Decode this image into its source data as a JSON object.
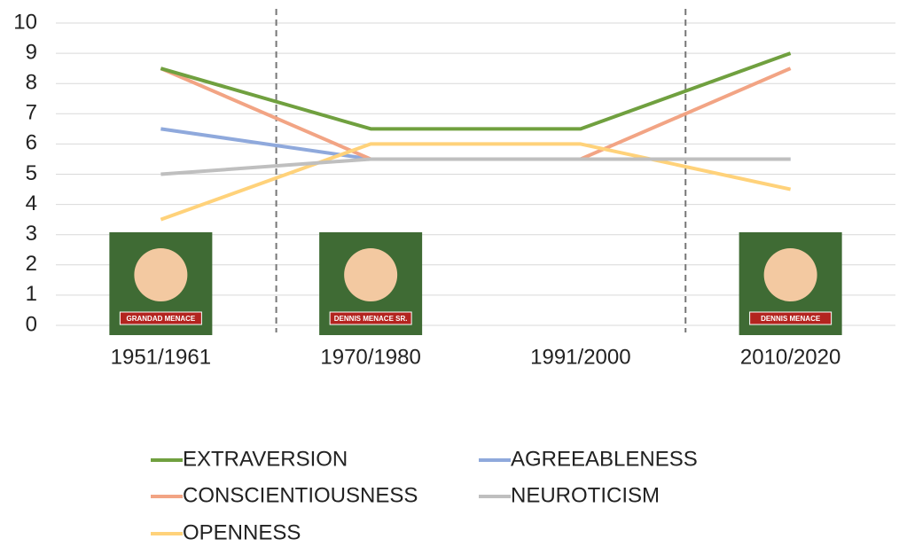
{
  "chart_data": {
    "type": "line",
    "categories": [
      "1951/1961",
      "1970/1980",
      "1991/2000",
      "2010/2020"
    ],
    "series": [
      {
        "name": "EXTRAVERSION",
        "color": "#70a03f",
        "values": [
          8.5,
          6.5,
          6.5,
          9
        ]
      },
      {
        "name": "AGREEABLENESS",
        "color": "#8fa9dc",
        "values": [
          6.5,
          5.5,
          5.5,
          5.5
        ]
      },
      {
        "name": "CONSCIENTIOUSNESS",
        "color": "#f2a484",
        "values": [
          8.5,
          5.5,
          5.5,
          8.5
        ]
      },
      {
        "name": "NEUROTICISM",
        "color": "#bfbfbf",
        "values": [
          5,
          5.5,
          5.5,
          5.5
        ]
      },
      {
        "name": "OPENNESS",
        "color": "#ffd27a",
        "values": [
          3.5,
          6,
          6,
          4.5
        ]
      }
    ],
    "ylim": [
      0,
      10
    ],
    "yticks": [
      0,
      1,
      2,
      3,
      4,
      5,
      6,
      7,
      8,
      9,
      10
    ],
    "grid": true,
    "images": [
      {
        "category": 0,
        "caption": "GRANDAD MENACE"
      },
      {
        "category": 1,
        "caption": "DENNIS MENACE SR."
      },
      {
        "category": 3,
        "caption": "DENNIS MENACE"
      }
    ]
  }
}
